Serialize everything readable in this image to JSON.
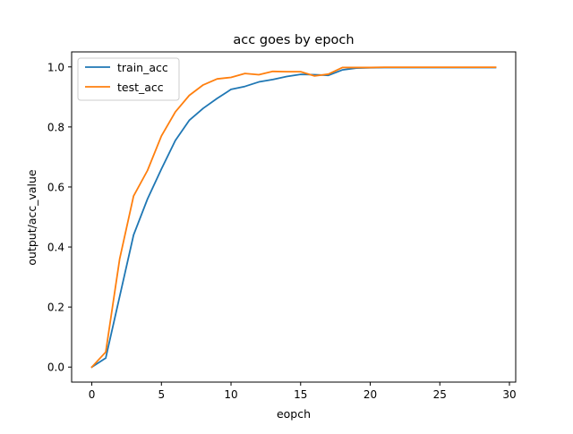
{
  "chart_data": {
    "type": "line",
    "title": "acc goes by epoch",
    "xlabel": "eopch",
    "ylabel": "output/acc_value",
    "xlim": [
      -1.45,
      30.45
    ],
    "ylim": [
      -0.05,
      1.05
    ],
    "xticks": [
      0,
      5,
      10,
      15,
      20,
      25,
      30
    ],
    "xtick_labels": [
      "0",
      "5",
      "10",
      "15",
      "20",
      "25",
      "30"
    ],
    "yticks": [
      0.0,
      0.2,
      0.4,
      0.6,
      0.8,
      1.0
    ],
    "ytick_labels": [
      "0.0",
      "0.2",
      "0.4",
      "0.6",
      "0.8",
      "1.0"
    ],
    "grid": false,
    "legend_position": "top-left",
    "x": [
      0,
      1,
      2,
      3,
      4,
      5,
      6,
      7,
      8,
      9,
      10,
      11,
      12,
      13,
      14,
      15,
      16,
      17,
      18,
      19,
      20,
      21,
      22,
      23,
      24,
      25,
      26,
      27,
      28,
      29
    ],
    "series": [
      {
        "name": "train_acc",
        "color": "#1f77b4",
        "values": [
          0.0,
          0.03,
          0.235,
          0.44,
          0.56,
          0.66,
          0.755,
          0.822,
          0.862,
          0.895,
          0.925,
          0.935,
          0.95,
          0.958,
          0.968,
          0.975,
          0.974,
          0.972,
          0.99,
          0.996,
          0.997,
          0.998,
          0.998,
          0.998,
          0.998,
          0.998,
          0.998,
          0.998,
          0.998,
          0.998
        ]
      },
      {
        "name": "test_acc",
        "color": "#ff7f0e",
        "values": [
          0.0,
          0.05,
          0.36,
          0.57,
          0.655,
          0.77,
          0.85,
          0.905,
          0.94,
          0.96,
          0.965,
          0.978,
          0.974,
          0.985,
          0.984,
          0.984,
          0.97,
          0.976,
          0.998,
          0.998,
          0.998,
          0.999,
          0.999,
          0.999,
          0.999,
          0.999,
          0.999,
          0.999,
          0.999,
          0.999
        ]
      }
    ]
  }
}
